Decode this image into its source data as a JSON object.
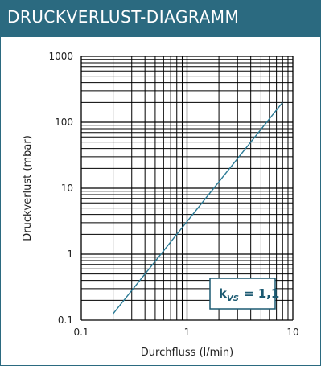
{
  "header": {
    "title": "DRUCKVERLUST-DIAGRAMM"
  },
  "colors": {
    "header_bg": "#2b6a80",
    "header_text": "#ffffff",
    "grid": "#000000",
    "curve": "#2a7a95",
    "annotation": "#1c5a72"
  },
  "chart_data": {
    "type": "line",
    "xscale": "log",
    "yscale": "log",
    "xlim": [
      0.1,
      10
    ],
    "ylim": [
      0.1,
      1000
    ],
    "xlabel": "Durchfluss (l/min)",
    "ylabel": "Druckverlust (mbar)",
    "x_ticks": [
      "0.1",
      "1",
      "10"
    ],
    "y_ticks": [
      "0.1",
      "1",
      "10",
      "100",
      "1000"
    ],
    "grid": true,
    "series": [
      {
        "x": [
          0.2,
          8
        ],
        "y": [
          0.125,
          200
        ]
      }
    ],
    "annotation": {
      "k": "k",
      "subscript": "VS",
      "value": "= 1,1",
      "placement": "bottom-right"
    }
  }
}
